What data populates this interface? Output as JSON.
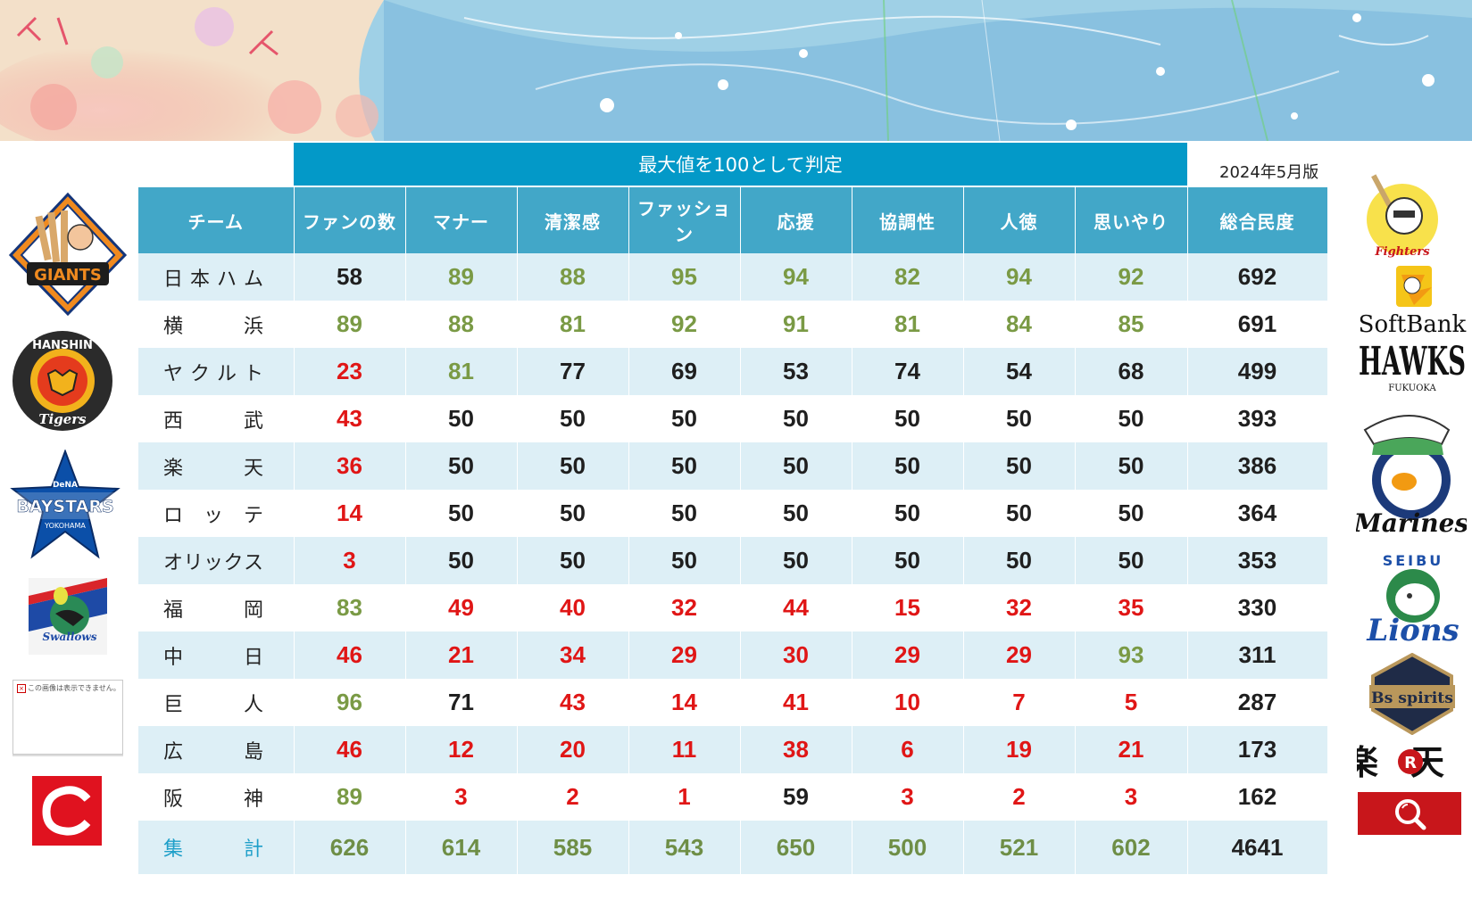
{
  "header": {
    "title": "最大値を100として判定",
    "edition": "2024年5月版"
  },
  "table": {
    "columns": [
      "チーム",
      "ファンの数",
      "マナー",
      "清潔感",
      "ファッション",
      "応援",
      "協調性",
      "人徳",
      "思いやり",
      "総合民度"
    ],
    "rows": [
      {
        "team": "日本ハム",
        "chars": [
          "日",
          "本",
          "ハ",
          "ム"
        ],
        "values": [
          58,
          89,
          88,
          95,
          94,
          82,
          94,
          92
        ],
        "total": 692,
        "levels": [
          "mid",
          "high",
          "high",
          "high",
          "high",
          "high",
          "high",
          "high"
        ]
      },
      {
        "team": "横浜",
        "chars": [
          "横",
          "浜"
        ],
        "values": [
          89,
          88,
          81,
          92,
          91,
          81,
          84,
          85
        ],
        "total": 691,
        "levels": [
          "high",
          "high",
          "high",
          "high",
          "high",
          "high",
          "high",
          "high"
        ]
      },
      {
        "team": "ヤクルト",
        "chars": [
          "ヤ",
          "ク",
          "ル",
          "ト"
        ],
        "values": [
          23,
          81,
          77,
          69,
          53,
          74,
          54,
          68
        ],
        "total": 499,
        "levels": [
          "low",
          "high",
          "mid",
          "mid",
          "mid",
          "mid",
          "mid",
          "mid"
        ]
      },
      {
        "team": "西武",
        "chars": [
          "西",
          "武"
        ],
        "values": [
          43,
          50,
          50,
          50,
          50,
          50,
          50,
          50
        ],
        "total": 393,
        "levels": [
          "low",
          "mid",
          "mid",
          "mid",
          "mid",
          "mid",
          "mid",
          "mid"
        ]
      },
      {
        "team": "楽天",
        "chars": [
          "楽",
          "天"
        ],
        "values": [
          36,
          50,
          50,
          50,
          50,
          50,
          50,
          50
        ],
        "total": 386,
        "levels": [
          "low",
          "mid",
          "mid",
          "mid",
          "mid",
          "mid",
          "mid",
          "mid"
        ]
      },
      {
        "team": "ロッテ",
        "chars": [
          "ロ",
          "ッ",
          "テ"
        ],
        "values": [
          14,
          50,
          50,
          50,
          50,
          50,
          50,
          50
        ],
        "total": 364,
        "levels": [
          "low",
          "mid",
          "mid",
          "mid",
          "mid",
          "mid",
          "mid",
          "mid"
        ]
      },
      {
        "team": "オリックス",
        "chars": [
          "オ",
          "リ",
          "ッ",
          "ク",
          "ス"
        ],
        "values": [
          3,
          50,
          50,
          50,
          50,
          50,
          50,
          50
        ],
        "total": 353,
        "levels": [
          "low",
          "mid",
          "mid",
          "mid",
          "mid",
          "mid",
          "mid",
          "mid"
        ]
      },
      {
        "team": "福岡",
        "chars": [
          "福",
          "岡"
        ],
        "values": [
          83,
          49,
          40,
          32,
          44,
          15,
          32,
          35
        ],
        "total": 330,
        "levels": [
          "high",
          "low",
          "low",
          "low",
          "low",
          "low",
          "low",
          "low"
        ]
      },
      {
        "team": "中日",
        "chars": [
          "中",
          "日"
        ],
        "values": [
          46,
          21,
          34,
          29,
          30,
          29,
          29,
          93
        ],
        "total": 311,
        "levels": [
          "low",
          "low",
          "low",
          "low",
          "low",
          "low",
          "low",
          "high"
        ]
      },
      {
        "team": "巨人",
        "chars": [
          "巨",
          "人"
        ],
        "values": [
          96,
          71,
          43,
          14,
          41,
          10,
          7,
          5
        ],
        "total": 287,
        "levels": [
          "high",
          "mid",
          "low",
          "low",
          "low",
          "low",
          "low",
          "low"
        ]
      },
      {
        "team": "広島",
        "chars": [
          "広",
          "島"
        ],
        "values": [
          46,
          12,
          20,
          11,
          38,
          6,
          19,
          21
        ],
        "total": 173,
        "levels": [
          "low",
          "low",
          "low",
          "low",
          "low",
          "low",
          "low",
          "low"
        ]
      },
      {
        "team": "阪神",
        "chars": [
          "阪",
          "神"
        ],
        "values": [
          89,
          3,
          2,
          1,
          59,
          3,
          2,
          3
        ],
        "total": 162,
        "levels": [
          "high",
          "low",
          "low",
          "low",
          "mid",
          "low",
          "low",
          "low"
        ]
      }
    ],
    "summary": {
      "label": "集計",
      "chars": [
        "集",
        "計"
      ],
      "values": [
        626,
        614,
        585,
        543,
        650,
        500,
        521,
        602
      ],
      "total": 4641
    }
  },
  "left_logos": {
    "giants": "GIANTS",
    "hanshin_top": "HANSHIN",
    "hanshin_bottom": "Tigers",
    "baystars_top": "DeNA",
    "baystars": "BAYSTARS",
    "baystars_bottom": "YOKOHAMA",
    "swallows": "Swallows",
    "broken_image_text": "この画像は表示できません。"
  },
  "right_logos": {
    "fighters": "Fighters",
    "softbank": "SoftBank",
    "hawks": "HAWKS",
    "fukuoka": "FUKUOKA",
    "marines": "Marines",
    "seibu": "SEIBU",
    "lions": "Lions",
    "buffaloes": "Bs spirits",
    "rakuten": "楽天"
  },
  "colors": {
    "header_bg": "#0399c8",
    "th_bg": "#42a7c8",
    "high": "#7a9a45",
    "low": "#e01616",
    "mid": "#1f1f1f",
    "stripe": "#ddeff6"
  }
}
